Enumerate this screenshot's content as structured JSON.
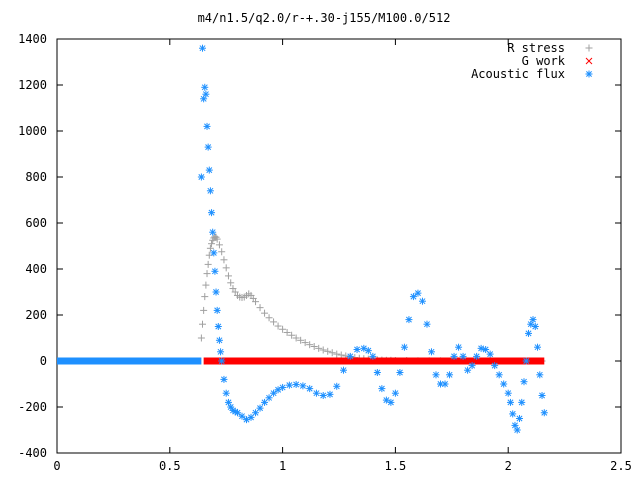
{
  "chart_data": {
    "type": "scatter",
    "title": "m4/n1.5/q2.0/r-+.30-j155/M100.0/512",
    "xlabel": "",
    "ylabel": "",
    "xlim": [
      0,
      2.5
    ],
    "ylim": [
      -400,
      1400
    ],
    "x_ticks": [
      "0",
      "0.5",
      "1",
      "1.5",
      "2",
      "2.5"
    ],
    "y_ticks": [
      "-400",
      "-200",
      "0",
      "200",
      "400",
      "600",
      "800",
      "1000",
      "1200",
      "1400"
    ],
    "grid": false,
    "legend_position": "top-right",
    "series": [
      {
        "name": "R stress",
        "marker": "+",
        "color": "#a0a0a0",
        "x": [
          0.64,
          0.645,
          0.65,
          0.655,
          0.66,
          0.665,
          0.67,
          0.675,
          0.68,
          0.685,
          0.69,
          0.695,
          0.7,
          0.705,
          0.71,
          0.72,
          0.73,
          0.74,
          0.75,
          0.76,
          0.77,
          0.78,
          0.79,
          0.8,
          0.81,
          0.82,
          0.83,
          0.84,
          0.85,
          0.86,
          0.87,
          0.88,
          0.9,
          0.92,
          0.94,
          0.96,
          0.98,
          1.0,
          1.02,
          1.04,
          1.06,
          1.08,
          1.1,
          1.12,
          1.14,
          1.16,
          1.18,
          1.2,
          1.22,
          1.24,
          1.26,
          1.28,
          1.3,
          1.32,
          1.34,
          1.36,
          1.38,
          1.4,
          1.42,
          1.44,
          1.46,
          1.48,
          1.5,
          1.55,
          1.6,
          1.65,
          1.7,
          1.75,
          1.8,
          1.85,
          1.9,
          1.95,
          2.0,
          2.05,
          2.1,
          2.15
        ],
        "y": [
          100,
          160,
          220,
          280,
          330,
          380,
          420,
          460,
          490,
          510,
          525,
          535,
          540,
          538,
          530,
          505,
          475,
          440,
          405,
          370,
          340,
          315,
          300,
          285,
          278,
          276,
          278,
          285,
          292,
          285,
          272,
          258,
          232,
          208,
          188,
          170,
          152,
          138,
          124,
          112,
          100,
          90,
          80,
          71,
          63,
          55,
          48,
          42,
          36,
          30,
          26,
          22,
          18,
          15,
          12,
          10,
          8,
          6,
          5,
          4,
          3,
          3,
          2,
          2,
          1,
          1,
          1,
          1,
          0,
          0,
          0,
          0,
          0,
          0,
          0,
          0
        ]
      },
      {
        "name": "G work",
        "marker": "x",
        "color": "#ff0000",
        "x_start": 0.65,
        "x_end": 2.16,
        "y": 0
      },
      {
        "name": "Acoustic flux",
        "marker": "*",
        "color": "#1e90ff",
        "x": [
          0.64,
          0.645,
          0.65,
          0.655,
          0.66,
          0.665,
          0.67,
          0.675,
          0.68,
          0.685,
          0.69,
          0.695,
          0.7,
          0.705,
          0.71,
          0.715,
          0.72,
          0.725,
          0.73,
          0.74,
          0.75,
          0.76,
          0.77,
          0.78,
          0.79,
          0.8,
          0.82,
          0.84,
          0.86,
          0.88,
          0.9,
          0.92,
          0.94,
          0.96,
          0.98,
          1.0,
          1.03,
          1.06,
          1.09,
          1.12,
          1.15,
          1.18,
          1.21,
          1.24,
          1.27,
          1.3,
          1.33,
          1.36,
          1.38,
          1.4,
          1.42,
          1.44,
          1.46,
          1.48,
          1.5,
          1.52,
          1.54,
          1.56,
          1.58,
          1.6,
          1.62,
          1.64,
          1.66,
          1.68,
          1.7,
          1.72,
          1.74,
          1.76,
          1.78,
          1.8,
          1.82,
          1.84,
          1.86,
          1.88,
          1.9,
          1.92,
          1.94,
          1.96,
          1.98,
          2.0,
          2.01,
          2.02,
          2.03,
          2.04,
          2.05,
          2.06,
          2.07,
          2.08,
          2.09,
          2.1,
          2.11,
          2.12,
          2.13,
          2.14,
          2.15,
          2.16
        ],
        "y": [
          800,
          1360,
          1140,
          1190,
          1160,
          1020,
          930,
          830,
          740,
          645,
          560,
          470,
          390,
          300,
          220,
          150,
          90,
          40,
          0,
          -80,
          -140,
          -180,
          -200,
          -215,
          -220,
          -225,
          -240,
          -255,
          -245,
          -225,
          -205,
          -180,
          -160,
          -140,
          -125,
          -115,
          -105,
          -102,
          -108,
          -120,
          -140,
          -150,
          -145,
          -110,
          -40,
          20,
          50,
          55,
          45,
          20,
          -50,
          -120,
          -170,
          -180,
          -140,
          -50,
          60,
          180,
          280,
          295,
          260,
          160,
          40,
          -60,
          -100,
          -100,
          -60,
          20,
          60,
          20,
          -40,
          -20,
          20,
          55,
          50,
          30,
          -20,
          -60,
          -100,
          -140,
          -180,
          -230,
          -280,
          -300,
          -250,
          -180,
          -90,
          0,
          120,
          160,
          180,
          150,
          60,
          -60,
          -150,
          -225
        ]
      }
    ]
  }
}
